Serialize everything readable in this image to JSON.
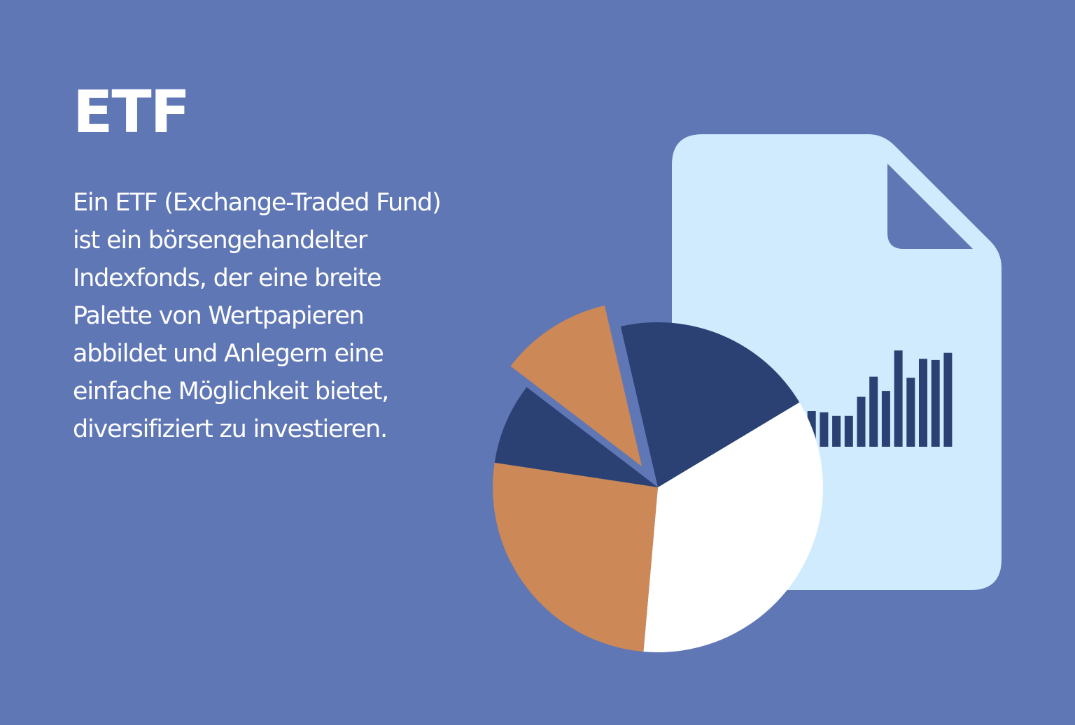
{
  "colors": {
    "background": "#6077b6",
    "document": "#d0ebfd",
    "navy": "#2b4173",
    "orange": "#cc8856",
    "white": "#ffffff",
    "text": "#ffffff"
  },
  "header": {
    "title": "ETF"
  },
  "body": {
    "lines": [
      "Ein ETF (Exchange-Traded Fund)",
      "ist ein börsengehandelter",
      "Indexfonds, der eine breite",
      "Palette von Wertpapieren",
      "abbildet und Anlegern eine",
      "einfache Möglichkeit bietet,",
      "diversifiziert zu investieren."
    ]
  },
  "illustration": {
    "document_icon": "document-icon",
    "chart_icon": "pie-chart-icon",
    "pie_slices": [
      {
        "name": "white-slice",
        "percent": 35,
        "color": "#ffffff"
      },
      {
        "name": "orange-slice-large",
        "percent": 26,
        "color": "#cc8856"
      },
      {
        "name": "navy-slice-small",
        "percent": 8,
        "color": "#2b4173"
      },
      {
        "name": "orange-slice-exploded",
        "percent": 11,
        "color": "#cc8856"
      },
      {
        "name": "navy-slice-large",
        "percent": 20,
        "color": "#2b4173"
      }
    ],
    "bar_levels": [
      0.3,
      0.3,
      0.29,
      0.26,
      0.26,
      0.42,
      0.59,
      0.47,
      0.81,
      0.58,
      0.74,
      0.73,
      0.79
    ]
  }
}
